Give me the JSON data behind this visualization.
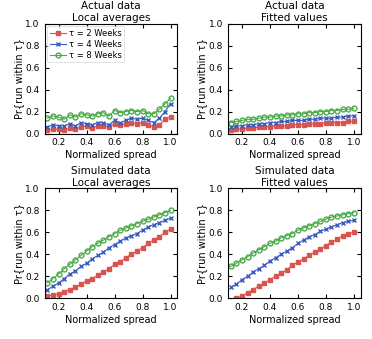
{
  "titles": [
    [
      "Actual data",
      "Local averages"
    ],
    [
      "Actual data",
      "Fitted values"
    ],
    [
      "Simulated data",
      "Local averages"
    ],
    [
      "Simulated data",
      "Fitted values"
    ]
  ],
  "xlabel": "Normalized spread",
  "ylabel": "Pr{run within τ}",
  "legend_labels": [
    "τ = 2 Weeks",
    "τ = 4 Weeks",
    "τ = 8 Weeks"
  ],
  "colors": [
    "#d9534f",
    "#3a5cbf",
    "#4aaa4a"
  ],
  "markers": [
    "s",
    "x",
    "o"
  ],
  "x_ticks": [
    0.2,
    0.4,
    0.6,
    0.8,
    1.0
  ],
  "ylim": [
    0,
    1
  ],
  "xlim": [
    0.1,
    1.05
  ],
  "actual_local_x": [
    0.12,
    0.16,
    0.2,
    0.24,
    0.28,
    0.32,
    0.36,
    0.4,
    0.44,
    0.48,
    0.52,
    0.56,
    0.6,
    0.64,
    0.68,
    0.72,
    0.76,
    0.8,
    0.84,
    0.88,
    0.92,
    0.96,
    1.0
  ],
  "actual_local_2w": [
    0.03,
    0.04,
    0.04,
    0.03,
    0.05,
    0.04,
    0.06,
    0.07,
    0.05,
    0.07,
    0.07,
    0.06,
    0.09,
    0.08,
    0.09,
    0.1,
    0.09,
    0.1,
    0.08,
    0.06,
    0.08,
    0.13,
    0.15
  ],
  "actual_local_4w": [
    0.06,
    0.08,
    0.07,
    0.07,
    0.09,
    0.07,
    0.1,
    0.09,
    0.08,
    0.1,
    0.1,
    0.08,
    0.12,
    0.1,
    0.12,
    0.14,
    0.13,
    0.14,
    0.12,
    0.1,
    0.14,
    0.2,
    0.27
  ],
  "actual_local_8w": [
    0.14,
    0.16,
    0.15,
    0.13,
    0.17,
    0.15,
    0.18,
    0.17,
    0.16,
    0.18,
    0.19,
    0.16,
    0.21,
    0.19,
    0.2,
    0.21,
    0.2,
    0.21,
    0.18,
    0.18,
    0.22,
    0.27,
    0.32
  ],
  "actual_fitted_x": [
    0.12,
    0.16,
    0.2,
    0.24,
    0.28,
    0.32,
    0.36,
    0.4,
    0.44,
    0.48,
    0.52,
    0.56,
    0.6,
    0.64,
    0.68,
    0.72,
    0.76,
    0.8,
    0.84,
    0.88,
    0.92,
    0.96,
    1.0
  ],
  "actual_fitted_2w": [
    0.03,
    0.04,
    0.04,
    0.05,
    0.05,
    0.06,
    0.06,
    0.06,
    0.07,
    0.07,
    0.07,
    0.08,
    0.08,
    0.08,
    0.09,
    0.09,
    0.09,
    0.1,
    0.1,
    0.1,
    0.1,
    0.11,
    0.11
  ],
  "actual_fitted_4w": [
    0.06,
    0.07,
    0.07,
    0.08,
    0.08,
    0.09,
    0.09,
    0.1,
    0.1,
    0.11,
    0.11,
    0.12,
    0.12,
    0.12,
    0.13,
    0.13,
    0.14,
    0.14,
    0.14,
    0.15,
    0.15,
    0.16,
    0.16
  ],
  "actual_fitted_8w": [
    0.1,
    0.11,
    0.12,
    0.13,
    0.13,
    0.14,
    0.15,
    0.15,
    0.16,
    0.16,
    0.17,
    0.17,
    0.18,
    0.18,
    0.19,
    0.19,
    0.2,
    0.2,
    0.21,
    0.21,
    0.22,
    0.22,
    0.23
  ],
  "sim_local_x": [
    0.12,
    0.16,
    0.2,
    0.24,
    0.28,
    0.32,
    0.36,
    0.4,
    0.44,
    0.48,
    0.52,
    0.56,
    0.6,
    0.64,
    0.68,
    0.72,
    0.76,
    0.8,
    0.84,
    0.88,
    0.92,
    0.96,
    1.0
  ],
  "sim_local_2w": [
    0.02,
    0.03,
    0.04,
    0.06,
    0.08,
    0.1,
    0.13,
    0.16,
    0.18,
    0.21,
    0.24,
    0.27,
    0.31,
    0.33,
    0.37,
    0.4,
    0.43,
    0.46,
    0.5,
    0.53,
    0.56,
    0.6,
    0.63
  ],
  "sim_local_4w": [
    0.08,
    0.11,
    0.14,
    0.18,
    0.22,
    0.25,
    0.29,
    0.32,
    0.36,
    0.39,
    0.42,
    0.46,
    0.49,
    0.52,
    0.55,
    0.57,
    0.59,
    0.62,
    0.65,
    0.67,
    0.69,
    0.71,
    0.73
  ],
  "sim_local_8w": [
    0.14,
    0.18,
    0.22,
    0.27,
    0.31,
    0.35,
    0.39,
    0.43,
    0.47,
    0.5,
    0.53,
    0.56,
    0.59,
    0.62,
    0.64,
    0.66,
    0.68,
    0.7,
    0.72,
    0.74,
    0.76,
    0.78,
    0.8
  ],
  "sim_fitted_x": [
    0.12,
    0.16,
    0.2,
    0.24,
    0.28,
    0.32,
    0.36,
    0.4,
    0.44,
    0.48,
    0.52,
    0.56,
    0.6,
    0.64,
    0.68,
    0.72,
    0.76,
    0.8,
    0.84,
    0.88,
    0.92,
    0.96,
    1.0
  ],
  "sim_fitted_2w": [
    -0.02,
    0.0,
    0.02,
    0.05,
    0.08,
    0.11,
    0.14,
    0.17,
    0.2,
    0.23,
    0.26,
    0.3,
    0.33,
    0.36,
    0.39,
    0.42,
    0.45,
    0.48,
    0.51,
    0.54,
    0.57,
    0.59,
    0.6
  ],
  "sim_fitted_4w": [
    0.1,
    0.13,
    0.17,
    0.2,
    0.24,
    0.27,
    0.3,
    0.34,
    0.37,
    0.4,
    0.43,
    0.46,
    0.5,
    0.53,
    0.56,
    0.58,
    0.61,
    0.63,
    0.65,
    0.67,
    0.69,
    0.7,
    0.71
  ],
  "sim_fitted_8w": [
    0.29,
    0.32,
    0.35,
    0.38,
    0.41,
    0.44,
    0.47,
    0.5,
    0.52,
    0.55,
    0.57,
    0.59,
    0.62,
    0.64,
    0.66,
    0.68,
    0.7,
    0.72,
    0.74,
    0.75,
    0.76,
    0.77,
    0.78
  ],
  "title_fontsize": 7.5,
  "tick_fontsize": 6.5,
  "label_fontsize": 7,
  "legend_fontsize": 6,
  "linewidth": 0.8,
  "markersize": 3.0
}
